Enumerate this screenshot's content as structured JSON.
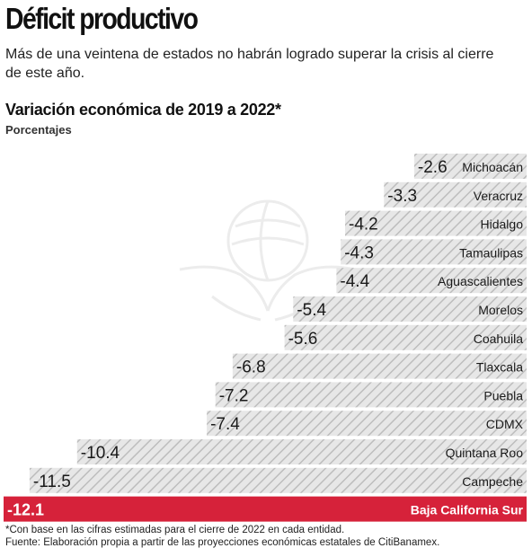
{
  "header": {
    "title": "Déficit productivo",
    "subtitle": "Más de una veintena de estados no habrán logrado superar la crisis al cierre de este año."
  },
  "colors": {
    "bar_fill": "#e7e7e7",
    "bar_hatch": "#bdbdbd",
    "highlight": "#d6223a",
    "highlight_text": "#ffffff",
    "text": "#1a1a1a"
  },
  "chart_data": {
    "type": "bar",
    "orientation": "horizontal",
    "title": "Variación económica de 2019 a 2022*",
    "ylabel": "Porcentajes",
    "xlim": [
      -12.1,
      0
    ],
    "grid": false,
    "legend": "none",
    "highlight_category": "Baja California Sur",
    "categories": [
      "Michoacán",
      "Veracruz",
      "Hidalgo",
      "Tamaulipas",
      "Aguascalientes",
      "Morelos",
      "Coahuila",
      "Tlaxcala",
      "Puebla",
      "CDMX",
      "Quintana Roo",
      "Campeche",
      "Baja California Sur"
    ],
    "values": [
      -2.6,
      -3.3,
      -4.2,
      -4.3,
      -4.4,
      -5.4,
      -5.6,
      -6.8,
      -7.2,
      -7.4,
      -10.4,
      -11.5,
      -12.1
    ],
    "value_labels": [
      "-2.6",
      "-3.3",
      "-4.2",
      "-4.3",
      "-4.4",
      "-5.4",
      "-5.6",
      "-6.8",
      "-7.2",
      "-7.4",
      "-10.4",
      "-11.5",
      "-12.1"
    ]
  },
  "footer": {
    "footnote": "*Con base en las cifras estimadas para el cierre de 2022 en cada entidad.",
    "source": "Fuente: Elaboración propia a partir de las proyecciones económicas estatales de CitiBanamex."
  }
}
